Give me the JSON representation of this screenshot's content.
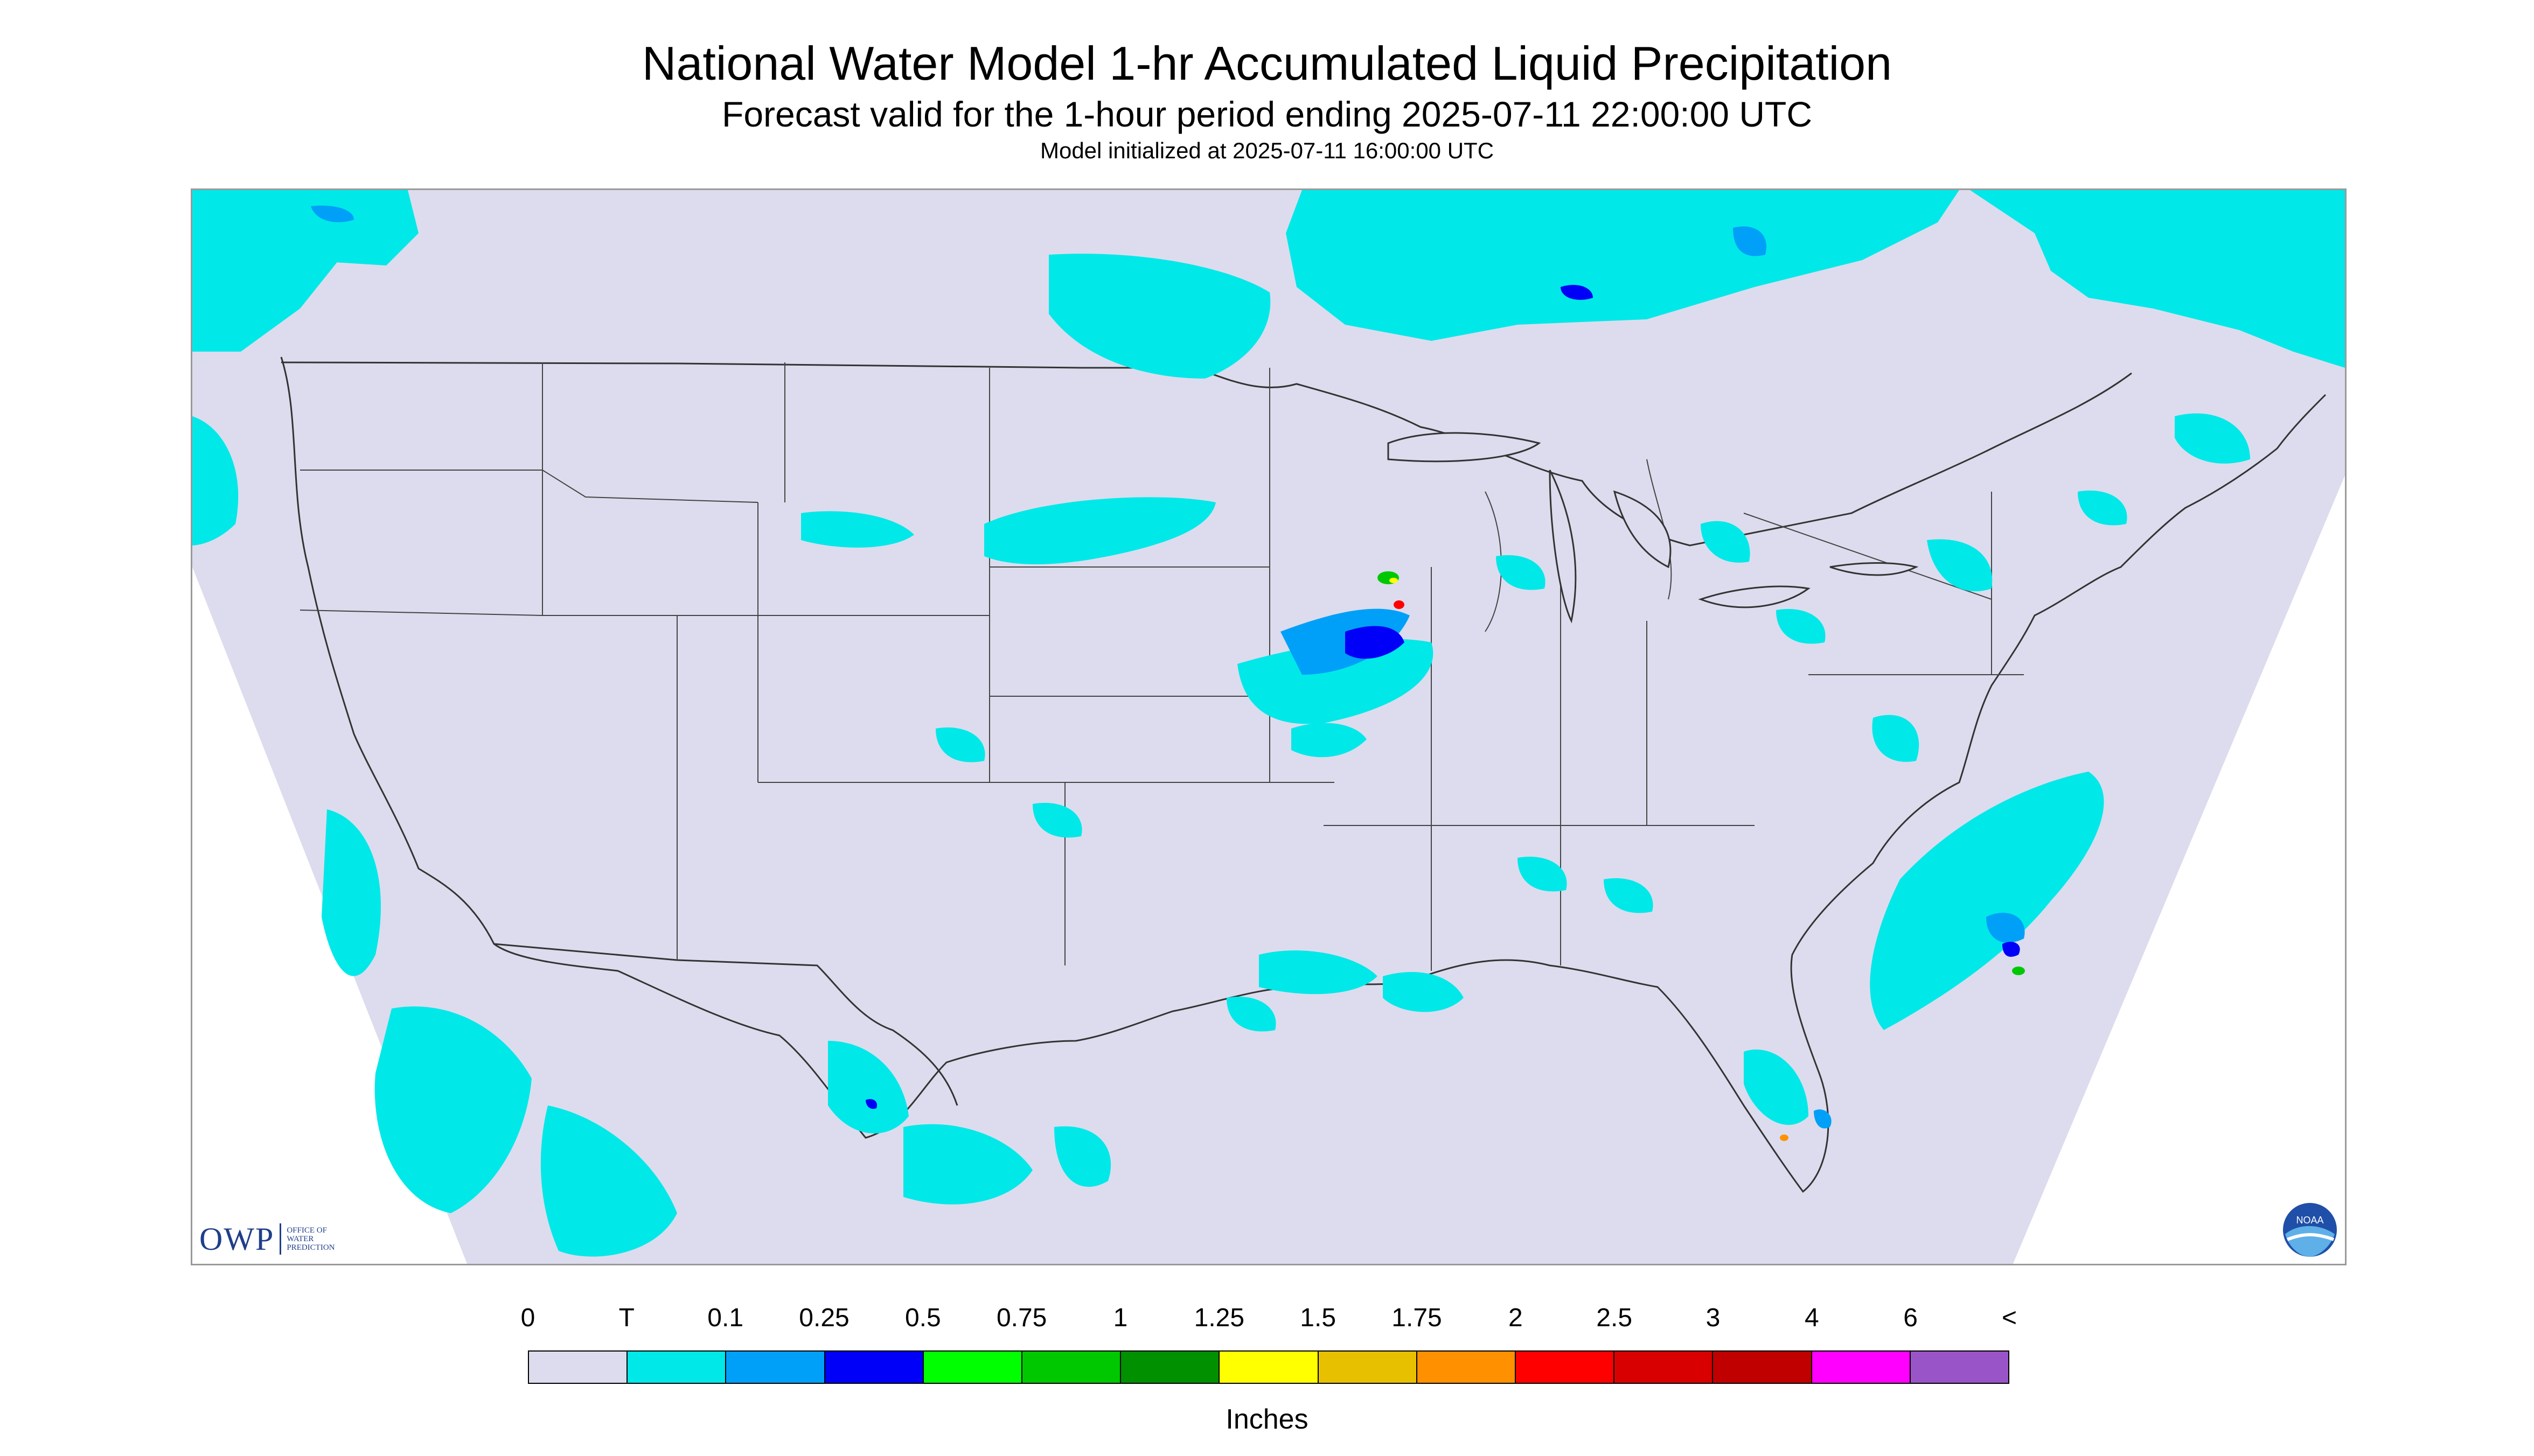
{
  "title": "National Water Model 1-hr Accumulated Liquid Precipitation",
  "subtitle": "Forecast valid for the 1-hour period ending 2025-07-11 22:00:00 UTC",
  "init_line": "Model initialized at 2025-07-11 16:00:00 UTC",
  "logos": {
    "owp_letters": "OWP",
    "owp_words": [
      "Office of",
      "Water",
      "Prediction"
    ],
    "noaa_text": "NOAA"
  },
  "legend": {
    "units": "Inches",
    "tick_labels": [
      "0",
      "T",
      "0.1",
      "0.25",
      "0.5",
      "0.75",
      "1",
      "1.25",
      "1.5",
      "1.75",
      "2",
      "2.5",
      "3",
      "4",
      "6",
      "<"
    ],
    "colors": [
      "#dcdcee",
      "#00e8e8",
      "#00a0f8",
      "#0000f8",
      "#00ff00",
      "#00c800",
      "#009000",
      "#ffff00",
      "#e7c000",
      "#ff9000",
      "#ff0000",
      "#d80000",
      "#c00000",
      "#ff00ff",
      "#9955c8"
    ]
  },
  "colors": {
    "no_data": "#ffffff",
    "background": "#dcdcee",
    "trace": "#00e8e8",
    "light": "#00a0f8",
    "moderate": "#0000f8",
    "heavy_green": "#00c800",
    "heavy_yellow": "#ffff00",
    "heavy_red": "#ff0000",
    "borders": "#333333"
  }
}
